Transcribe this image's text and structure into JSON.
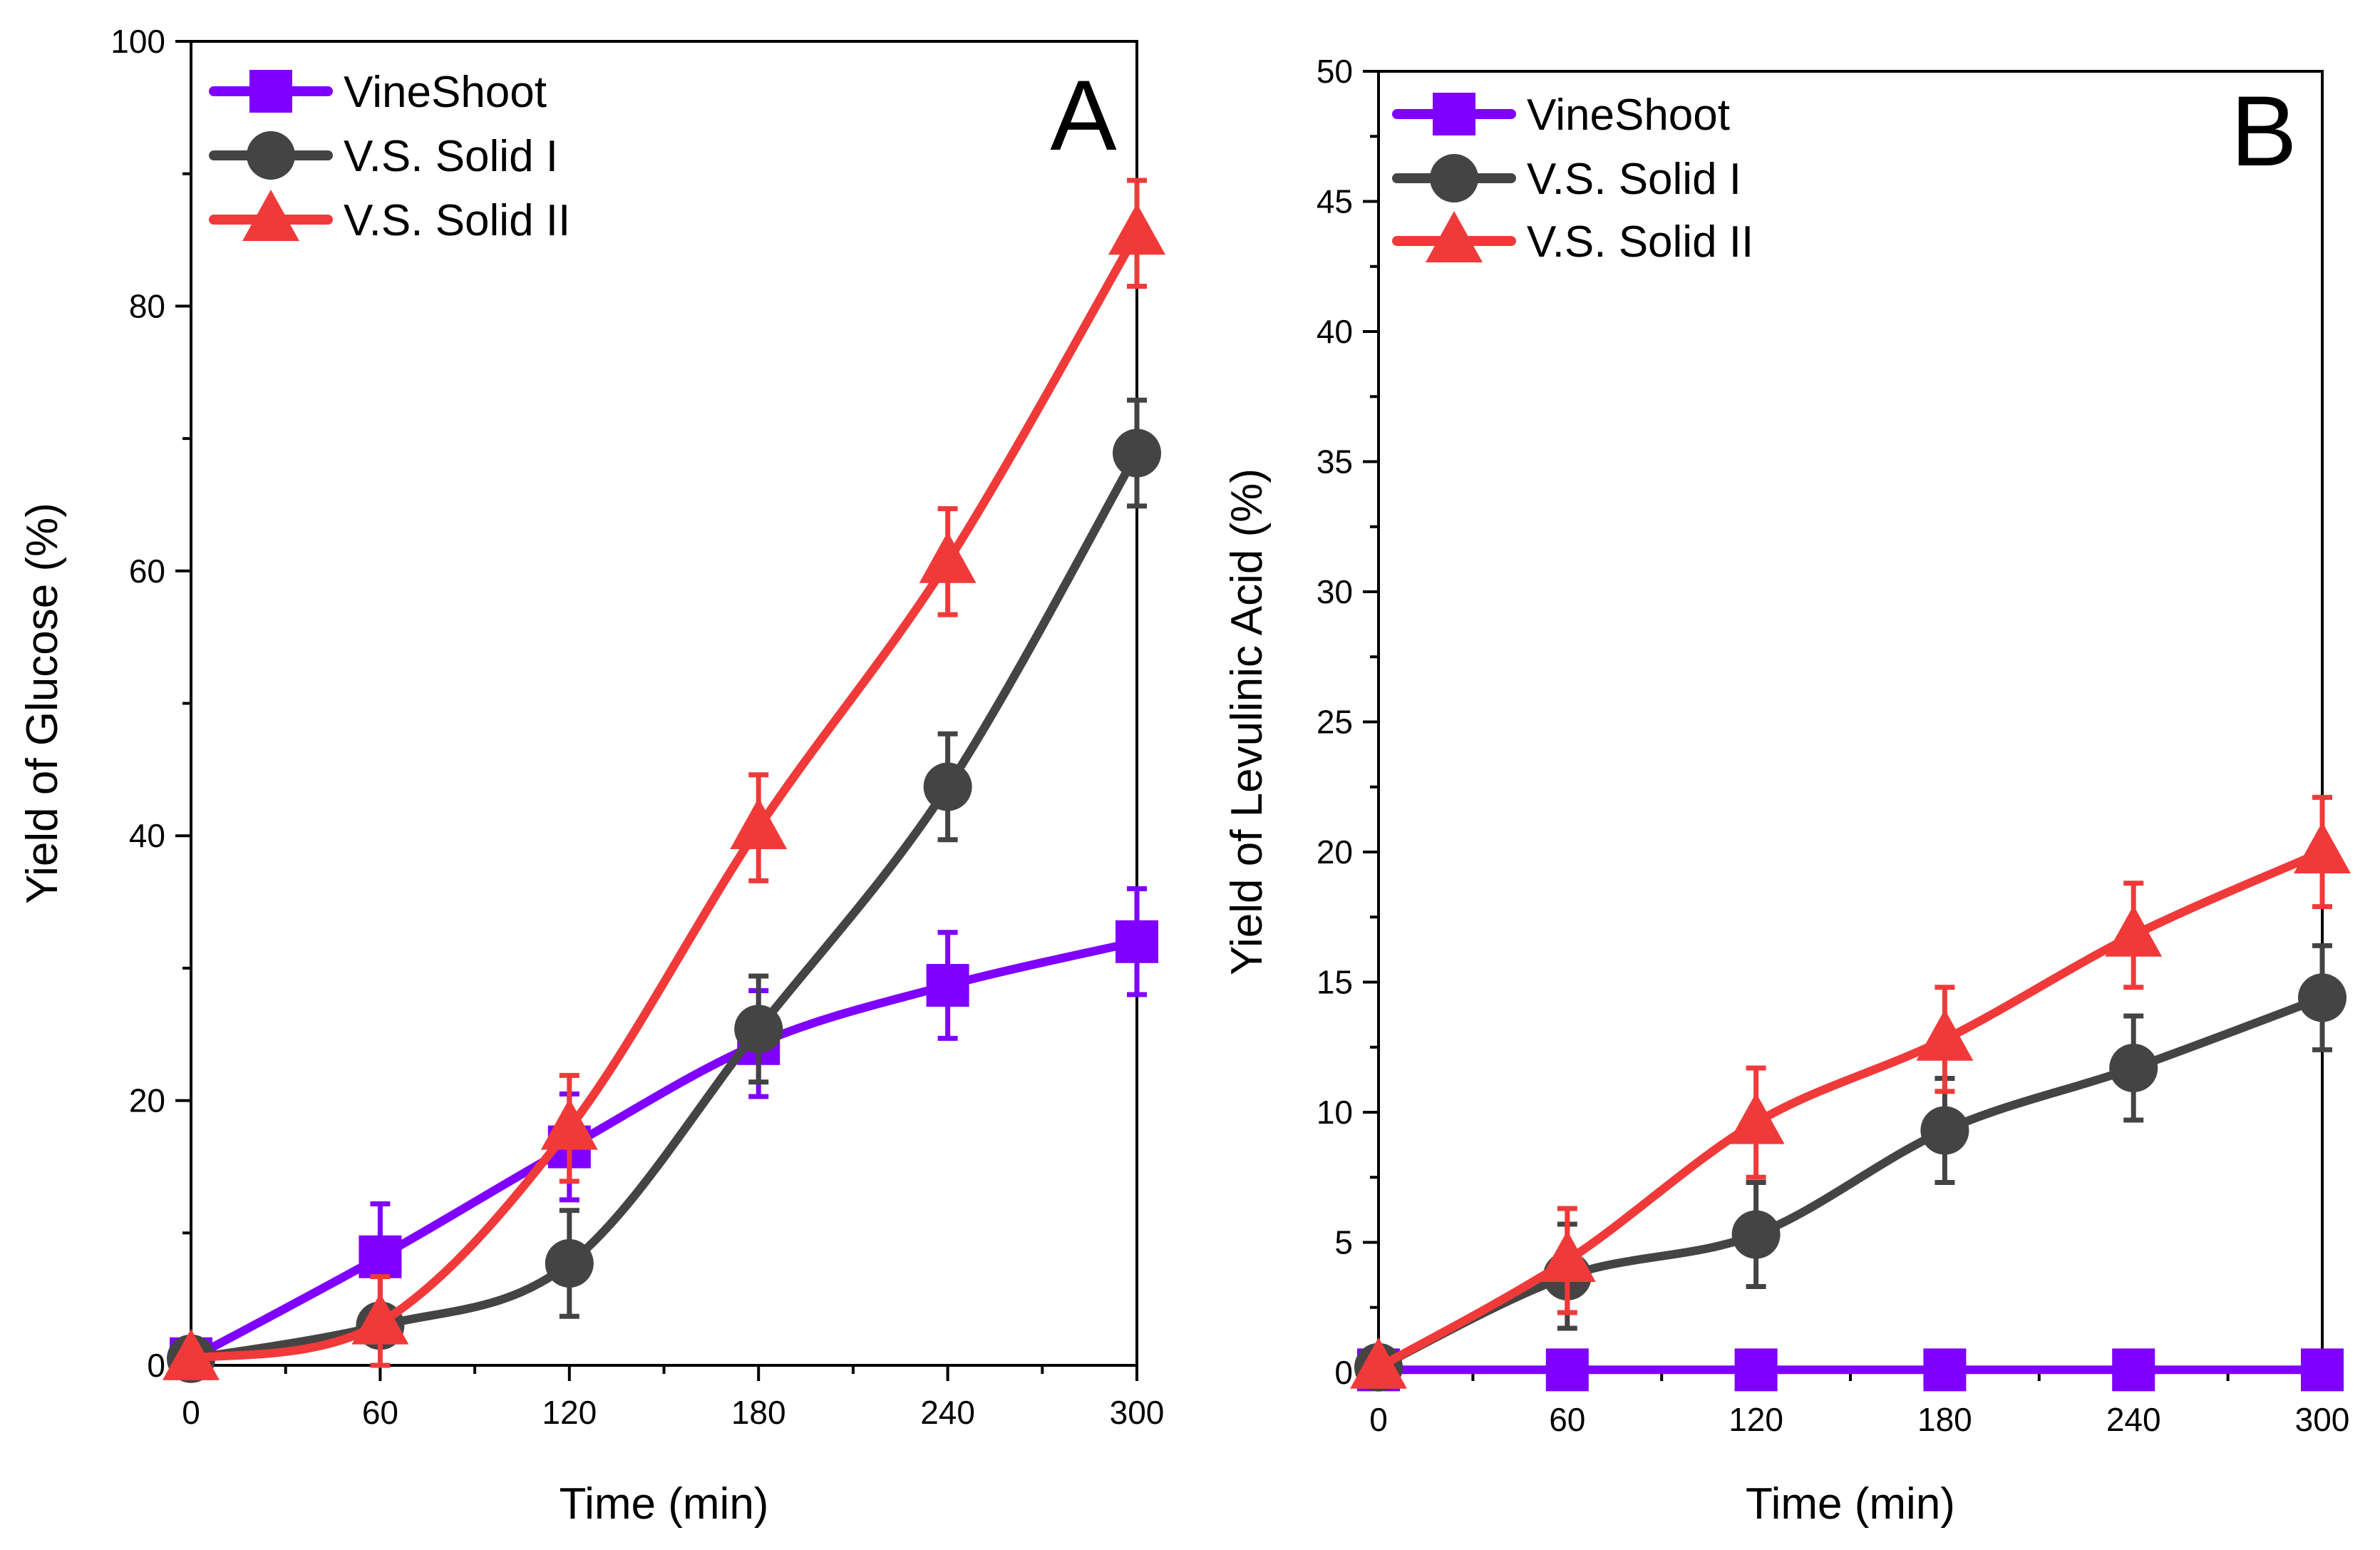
{
  "colors": {
    "VineShoot": "#7F00FF",
    "V.S. Solid I": "#444444",
    "V.S. Solid II": "#F03A3A"
  },
  "chart_data": [
    {
      "panel": "A",
      "type": "line",
      "xlabel": "Time (min)",
      "ylabel": "Yield of Glucose (%)",
      "xlim": [
        0,
        300
      ],
      "ylim": [
        0,
        100
      ],
      "xticks": [
        0,
        60,
        120,
        180,
        240,
        300
      ],
      "yticks": [
        0,
        20,
        40,
        60,
        80,
        100
      ],
      "legend_position": "top-left",
      "grid": false,
      "series": [
        {
          "name": "VineShoot",
          "marker": "square",
          "x": [
            0,
            60,
            120,
            180,
            240,
            300
          ],
          "y": [
            0.5,
            8.2,
            16.5,
            24.3,
            28.7,
            32.0
          ],
          "err": [
            0.5,
            4.0,
            4.0,
            4.0,
            4.0,
            4.0
          ]
        },
        {
          "name": "V.S. Solid I",
          "marker": "circle",
          "x": [
            0,
            60,
            120,
            180,
            240,
            300
          ],
          "y": [
            0.5,
            3.0,
            7.7,
            25.4,
            43.7,
            68.9
          ],
          "err": [
            0.5,
            1.5,
            4.0,
            4.0,
            4.0,
            4.0
          ]
        },
        {
          "name": "V.S. Solid II",
          "marker": "triangle",
          "x": [
            0,
            60,
            120,
            180,
            240,
            300
          ],
          "y": [
            0.5,
            3.2,
            17.9,
            40.6,
            60.7,
            85.5
          ],
          "err": [
            0.5,
            3.5,
            4.0,
            4.0,
            4.0,
            4.0
          ]
        }
      ]
    },
    {
      "panel": "B",
      "type": "line",
      "xlabel": "Time (min)",
      "ylabel": "Yield of Levulinic Acid (%)",
      "xlim": [
        0,
        300
      ],
      "ylim": [
        0,
        50
      ],
      "xticks": [
        0,
        60,
        120,
        180,
        240,
        300
      ],
      "yticks": [
        0,
        5,
        10,
        15,
        20,
        25,
        30,
        35,
        40,
        45,
        50
      ],
      "legend_position": "top-left",
      "grid": false,
      "series": [
        {
          "name": "VineShoot",
          "marker": "square",
          "x": [
            0,
            60,
            120,
            180,
            240,
            300
          ],
          "y": [
            0.1,
            0.1,
            0.1,
            0.1,
            0.1,
            0.1
          ],
          "err": [
            0,
            0,
            0,
            0,
            0,
            0
          ]
        },
        {
          "name": "V.S. Solid I",
          "marker": "circle",
          "x": [
            0,
            60,
            120,
            180,
            240,
            300
          ],
          "y": [
            0.2,
            3.7,
            5.3,
            9.3,
            11.7,
            14.4
          ],
          "err": [
            0.2,
            2.0,
            2.0,
            2.0,
            2.0,
            2.0
          ]
        },
        {
          "name": "V.S. Solid II",
          "marker": "triangle",
          "x": [
            0,
            60,
            120,
            180,
            240,
            300
          ],
          "y": [
            0.2,
            4.3,
            9.6,
            12.8,
            16.8,
            20.0
          ],
          "err": [
            0.2,
            2.0,
            2.1,
            2.0,
            2.0,
            2.1
          ]
        }
      ]
    }
  ]
}
